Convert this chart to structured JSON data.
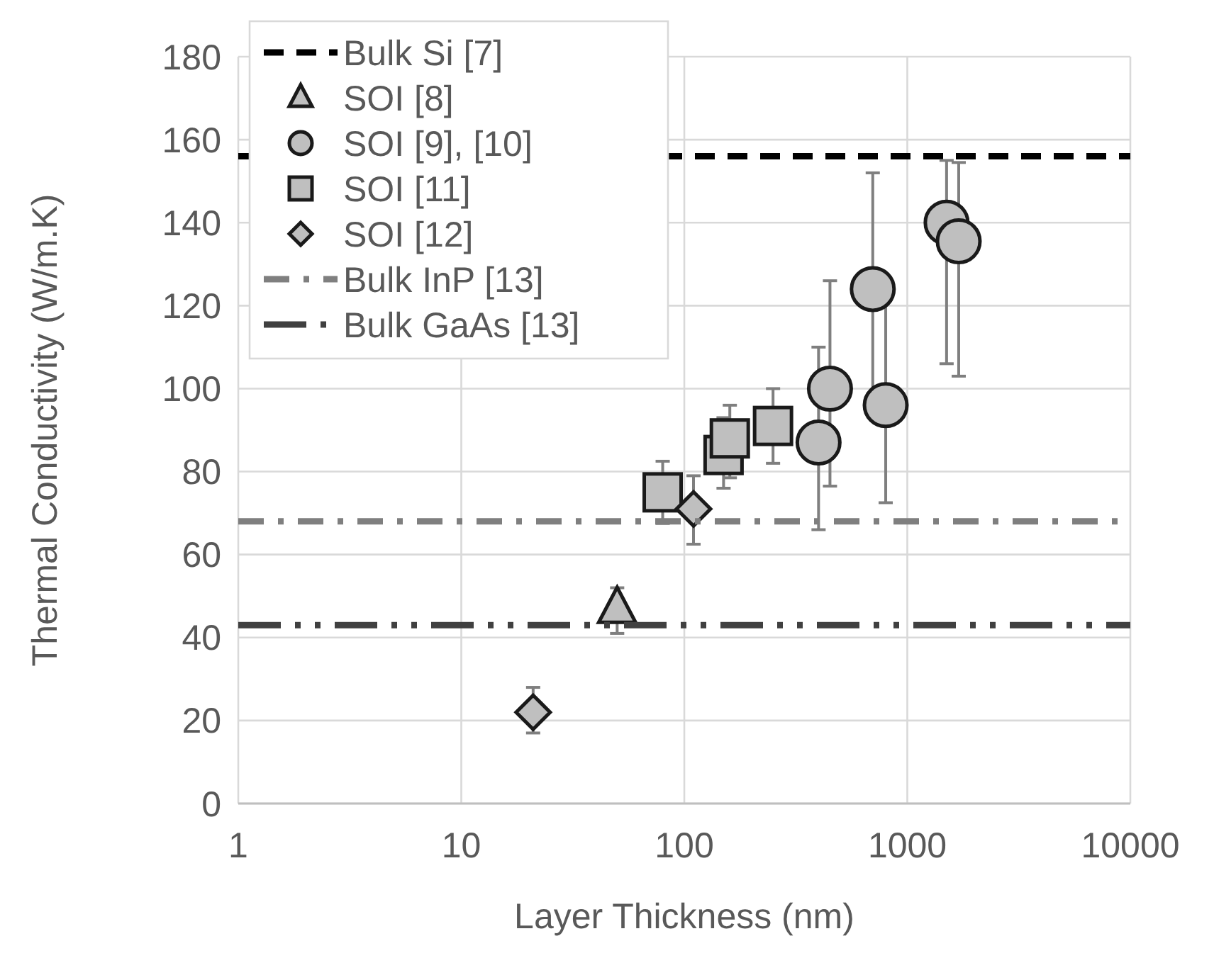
{
  "chart_data": {
    "type": "scatter",
    "xlabel": "Layer Thickness (nm)",
    "ylabel": "Thermal Conductivity (W/m.K)",
    "log": "x",
    "xlim": [
      1,
      10000
    ],
    "xticks": [
      1,
      10,
      100,
      1000,
      10000
    ],
    "ylim": [
      0,
      180
    ],
    "yticks": [
      0,
      20,
      40,
      60,
      80,
      100,
      120,
      140,
      160,
      180
    ],
    "grid": true,
    "legend": "top left",
    "series": [
      {
        "name": "Bulk Si [7]",
        "type": "line",
        "color": "#000000",
        "line_style": "dashed",
        "marker": "none",
        "x": [
          1,
          10000
        ],
        "values": [
          156,
          156
        ]
      },
      {
        "name": "SOI [8]",
        "color": "#bfbfbf",
        "marker": "triangle",
        "x": [
          50
        ],
        "values": [
          47
        ],
        "errors": [
          [
            41,
            52
          ]
        ]
      },
      {
        "name": "SOI [9], [10]",
        "color": "#bfbfbf",
        "marker": "circle",
        "x": [
          400,
          450,
          700,
          800,
          1500,
          1700
        ],
        "values": [
          87,
          100,
          124,
          96,
          140,
          135.5
        ],
        "errors": [
          [
            66,
            110
          ],
          [
            76.5,
            126
          ],
          [
            94,
            152
          ],
          [
            72.5,
            121.5
          ],
          [
            106,
            155
          ],
          [
            103,
            154.5
          ]
        ]
      },
      {
        "name": "SOI [11]",
        "color": "#bfbfbf",
        "marker": "square",
        "x": [
          80,
          150,
          160,
          250
        ],
        "values": [
          75,
          84,
          88,
          91
        ],
        "errors": [
          [
            67.5,
            82.5
          ],
          [
            76,
            93
          ],
          [
            78.5,
            96
          ],
          [
            82,
            100
          ]
        ]
      },
      {
        "name": "SOI [12]",
        "color": "#bfbfbf",
        "marker": "diamond",
        "x": [
          21,
          110
        ],
        "values": [
          22,
          71
        ],
        "errors": [
          [
            17,
            28
          ],
          [
            62.5,
            79
          ]
        ]
      },
      {
        "name": "Bulk InP [13]",
        "type": "line",
        "color": "#7f7f7f",
        "line_style": "dashdot",
        "marker": "none",
        "x": [
          1,
          10000
        ],
        "values": [
          68,
          68
        ]
      },
      {
        "name": "Bulk GaAs [13]",
        "type": "line",
        "color": "#404040",
        "line_style": "dashdotdot",
        "marker": "none",
        "x": [
          1,
          10000
        ],
        "values": [
          43,
          43
        ]
      }
    ]
  }
}
